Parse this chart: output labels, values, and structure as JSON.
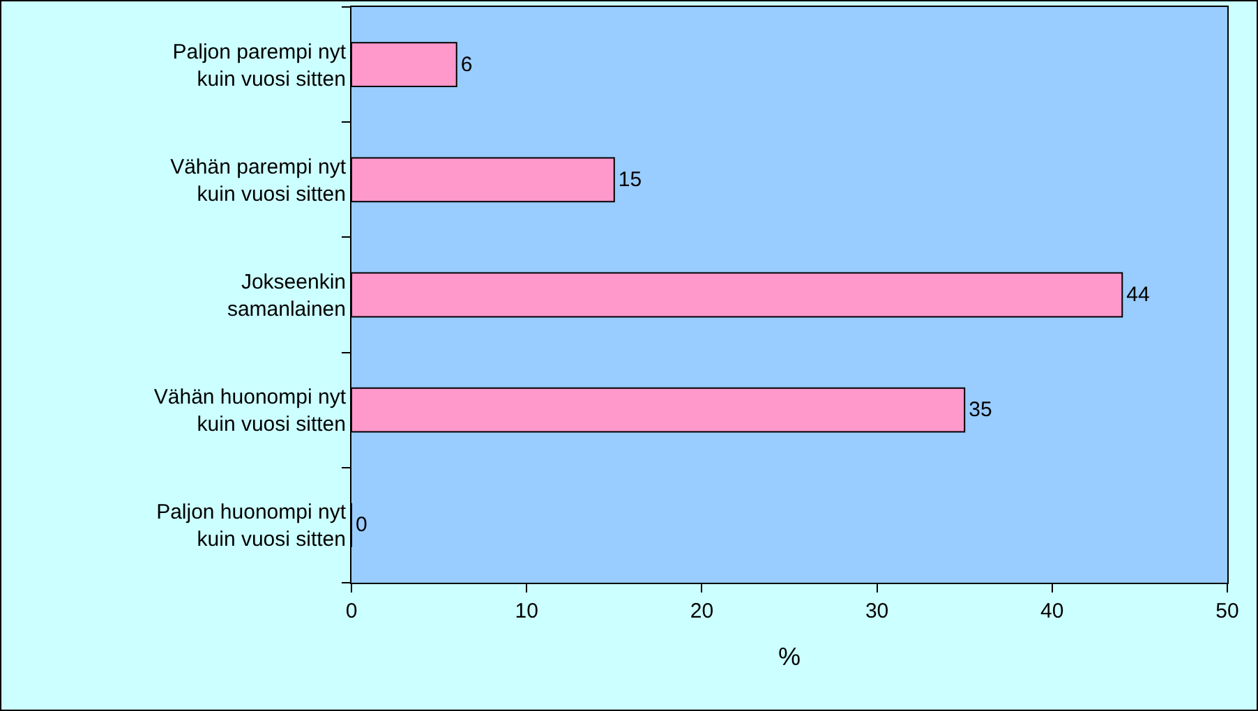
{
  "chart_data": {
    "type": "bar",
    "orientation": "horizontal",
    "xlabel": "%",
    "categories": [
      "Paljon parempi nyt\nkuin vuosi sitten",
      "Vähän parempi nyt\nkuin vuosi sitten",
      "Jokseenkin\nsamanlainen",
      "Vähän huonompi nyt\nkuin vuosi sitten",
      "Paljon huonompi nyt\nkuin vuosi sitten"
    ],
    "values": [
      6,
      15,
      44,
      35,
      0
    ],
    "color": "#ff99cc",
    "xlim": [
      0,
      50
    ],
    "xticks": [
      0,
      10,
      20,
      30,
      40,
      50
    ],
    "grid": false,
    "data_labels": true
  }
}
